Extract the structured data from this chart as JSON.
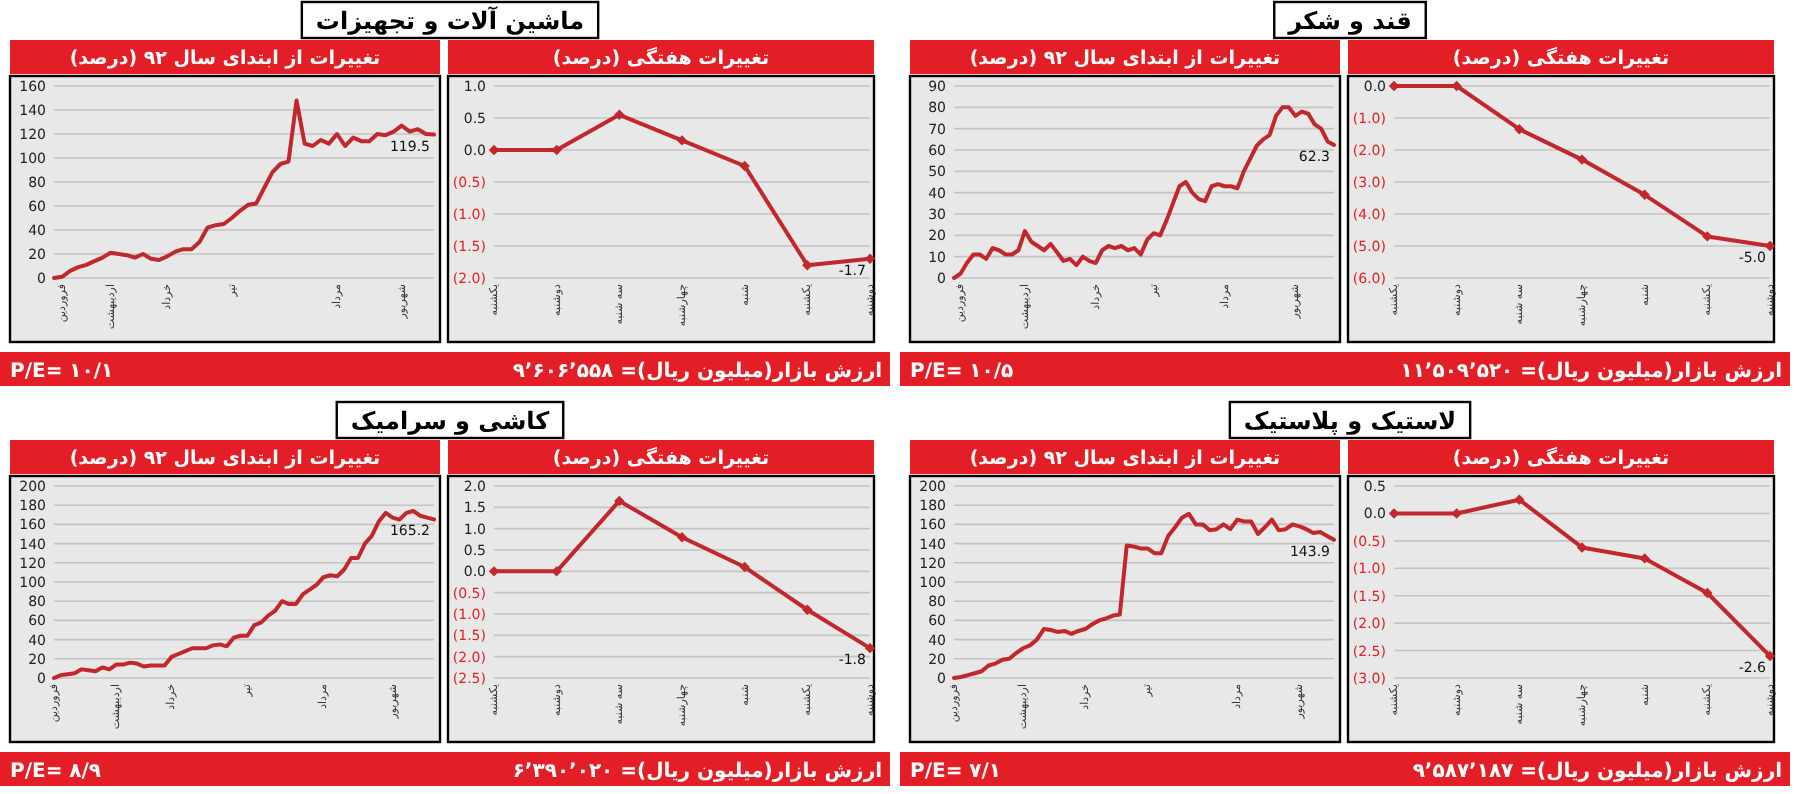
{
  "chart_data": [
    {
      "type": "line",
      "title": "ماشین آلات و تجهیزات",
      "subtitle": "تغییرات از ابتدای سال ۹۲ (درصد)",
      "color": "#c1272d",
      "grid": "y",
      "ylim": [
        0,
        160
      ],
      "categories": [
        null,
        "فروردین",
        null,
        null,
        null,
        null,
        null,
        "اردیبهشت",
        null,
        null,
        null,
        null,
        null,
        null,
        "خرداد",
        null,
        null,
        null,
        null,
        null,
        null,
        null,
        "تیر",
        null,
        null,
        null,
        null,
        null,
        null,
        null,
        null,
        null,
        null,
        null,
        null,
        "مرداد",
        null,
        null,
        null,
        null,
        null,
        null,
        null,
        "شهریور",
        null,
        null,
        null,
        null
      ],
      "yticks": [
        0,
        20,
        40,
        60,
        80,
        100,
        120,
        140,
        160
      ],
      "values": [
        0,
        1,
        6,
        9,
        11,
        14,
        17,
        21,
        20,
        19,
        17,
        20,
        16,
        15,
        18,
        22,
        24,
        24,
        30,
        42,
        44,
        45,
        50,
        56,
        61,
        62,
        75,
        88,
        95,
        97,
        148,
        112,
        110,
        115,
        112,
        120,
        110,
        117,
        114,
        114,
        120,
        119,
        122,
        127,
        122,
        124,
        120,
        119.5
      ],
      "value_labels": [
        null,
        null,
        null,
        null,
        null,
        null,
        null,
        null,
        null,
        null,
        null,
        null,
        null,
        null,
        null,
        null,
        null,
        null,
        null,
        null,
        null,
        null,
        null,
        null,
        null,
        null,
        null,
        null,
        null,
        null,
        null,
        null,
        null,
        null,
        null,
        null,
        null,
        null,
        null,
        null,
        null,
        null,
        null,
        null,
        null,
        null,
        null,
        "119.5"
      ],
      "annotations": [
        "P/E= ۱۰/۱",
        "ارزش بازار(میلیون ریال)= ۹٬۶۰۶٬۵۵۸"
      ]
    },
    {
      "type": "line",
      "title": "تغییرات هفتگی (درصد)",
      "color": "#c1272d",
      "grid": "y",
      "marker": "diamond",
      "ylim": [
        -2,
        1
      ],
      "categories": [
        "یکشنبه",
        "دوشنبه",
        "سه شنبه",
        "چهارشنبه",
        "شنبه",
        "یکشنبه",
        "دوشنبه"
      ],
      "yticks": [
        {
          "value": -2,
          "label": "(2.0)"
        },
        {
          "value": -1.5,
          "label": "(1.5)"
        },
        {
          "value": -1,
          "label": "(1.0)"
        },
        {
          "value": -0.5,
          "label": "(0.5)"
        },
        {
          "value": 0,
          "label": "0.0"
        },
        {
          "value": 0.5,
          "label": "0.5"
        },
        {
          "value": 1,
          "label": "1.0"
        }
      ],
      "values": [
        0,
        0,
        0.55,
        0.15,
        -0.25,
        -1.8,
        -1.7
      ],
      "value_labels": [
        null,
        null,
        null,
        null,
        null,
        null,
        "-1.7"
      ]
    },
    {
      "type": "line",
      "title": "قند و شکر",
      "subtitle": "تغییرات از ابتدای سال ۹۲ (درصد)",
      "color": "#c1272d",
      "grid": "y",
      "ylim": [
        0,
        90
      ],
      "categories": [
        null,
        "فروردین",
        null,
        null,
        null,
        null,
        null,
        null,
        null,
        null,
        null,
        "اردیبهشت",
        null,
        null,
        null,
        null,
        null,
        null,
        null,
        null,
        null,
        null,
        "خرداد",
        null,
        null,
        null,
        null,
        null,
        null,
        null,
        null,
        "تیر",
        null,
        null,
        null,
        null,
        null,
        null,
        null,
        null,
        null,
        null,
        "مرداد",
        null,
        null,
        null,
        null,
        null,
        null,
        null,
        null,
        null,
        null,
        "شهریور",
        null,
        null,
        null,
        null,
        null,
        null
      ],
      "yticks": [
        0,
        10,
        20,
        30,
        40,
        50,
        60,
        70,
        80,
        90
      ],
      "values": [
        0,
        2,
        7,
        11,
        11,
        9,
        14,
        13,
        11,
        11,
        13,
        22,
        17,
        15,
        13,
        16,
        12,
        8,
        9,
        6,
        10,
        8,
        7,
        13,
        15,
        14,
        15,
        13,
        14,
        11,
        18,
        21,
        20,
        27,
        35,
        43,
        45,
        40,
        37,
        36,
        43,
        44,
        43,
        43,
        42,
        50,
        56,
        62,
        65,
        67,
        76,
        80,
        80,
        76,
        78,
        77,
        72,
        70,
        64,
        62.3
      ],
      "value_labels": [
        null,
        null,
        null,
        null,
        null,
        null,
        null,
        null,
        null,
        null,
        null,
        null,
        null,
        null,
        null,
        null,
        null,
        null,
        null,
        null,
        null,
        null,
        null,
        null,
        null,
        null,
        null,
        null,
        null,
        null,
        null,
        null,
        null,
        null,
        null,
        null,
        null,
        null,
        null,
        null,
        null,
        null,
        null,
        null,
        null,
        null,
        null,
        null,
        null,
        null,
        null,
        null,
        null,
        null,
        null,
        null,
        null,
        null,
        null,
        "62.3"
      ],
      "annotations": [
        "P/E= ۱۰/۵",
        "ارزش بازار(میلیون ریال)= ۱۱٬۵۰۹٬۵۲۰"
      ]
    },
    {
      "type": "line",
      "title": "تغییرات هفتگی (درصد)",
      "color": "#c1272d",
      "grid": "y",
      "marker": "diamond",
      "ylim": [
        -6,
        0
      ],
      "categories": [
        "یکشنبه",
        "دوشنبه",
        "سه شنبه",
        "چهارشنبه",
        "شنبه",
        "یکشنبه",
        "دوشنبه"
      ],
      "yticks": [
        {
          "value": -6,
          "label": "(6.0)"
        },
        {
          "value": -5,
          "label": "(5.0)"
        },
        {
          "value": -4,
          "label": "(4.0)"
        },
        {
          "value": -3,
          "label": "(3.0)"
        },
        {
          "value": -2,
          "label": "(2.0)"
        },
        {
          "value": -1,
          "label": "(1.0)"
        },
        {
          "value": 0,
          "label": "0.0"
        }
      ],
      "values": [
        0,
        0,
        -1.35,
        -2.3,
        -3.4,
        -4.7,
        -5.0
      ],
      "value_labels": [
        null,
        null,
        null,
        null,
        null,
        null,
        "-5.0"
      ]
    },
    {
      "type": "line",
      "title": "کاشی و سرامیک",
      "subtitle": "تغییرات از ابتدای سال ۹۲ (درصد)",
      "color": "#c1272d",
      "grid": "y",
      "ylim": [
        0,
        200
      ],
      "categories": [
        "فروردین",
        null,
        null,
        null,
        null,
        null,
        null,
        null,
        null,
        "اردیبهشت",
        null,
        null,
        null,
        null,
        null,
        null,
        null,
        "خرداد",
        null,
        null,
        null,
        null,
        null,
        null,
        null,
        null,
        null,
        null,
        "تیر",
        null,
        null,
        null,
        null,
        null,
        null,
        null,
        null,
        null,
        null,
        "مرداد",
        null,
        null,
        null,
        null,
        null,
        null,
        null,
        null,
        null,
        "شهریور",
        null,
        null,
        null,
        null,
        null,
        null
      ],
      "yticks": [
        0,
        20,
        40,
        60,
        80,
        100,
        120,
        140,
        160,
        180,
        200
      ],
      "values": [
        0,
        3,
        4,
        5,
        9,
        8,
        7,
        11,
        9,
        14,
        14,
        16,
        15,
        12,
        13,
        13,
        13,
        22,
        25,
        28,
        31,
        31,
        31,
        34,
        35,
        33,
        42,
        44,
        44,
        55,
        58,
        65,
        70,
        80,
        77,
        77,
        87,
        92,
        97,
        105,
        107,
        106,
        113,
        125,
        125,
        140,
        148,
        163,
        172,
        167,
        165,
        172,
        174,
        169,
        167,
        165.2
      ],
      "value_labels": [
        null,
        null,
        null,
        null,
        null,
        null,
        null,
        null,
        null,
        null,
        null,
        null,
        null,
        null,
        null,
        null,
        null,
        null,
        null,
        null,
        null,
        null,
        null,
        null,
        null,
        null,
        null,
        null,
        null,
        null,
        null,
        null,
        null,
        null,
        null,
        null,
        null,
        null,
        null,
        null,
        null,
        null,
        null,
        null,
        null,
        null,
        null,
        null,
        null,
        null,
        null,
        null,
        null,
        null,
        null,
        "165.2"
      ],
      "annotations": [
        "P/E= ۸/۹",
        "ارزش بازار(میلیون ریال)= ۶٬۳۹۰٬۰۲۰"
      ]
    },
    {
      "type": "line",
      "title": "تغییرات هفتگی (درصد)",
      "color": "#c1272d",
      "grid": "y",
      "marker": "diamond",
      "ylim": [
        -2.5,
        2
      ],
      "categories": [
        "یکشنبه",
        "دوشنبه",
        "سه شنبه",
        "چهارشنبه",
        "شنبه",
        "یکشنبه",
        "دوشنبه"
      ],
      "yticks": [
        {
          "value": -2.5,
          "label": "(2.5)"
        },
        {
          "value": -2,
          "label": "(2.0)"
        },
        {
          "value": -1.5,
          "label": "(1.5)"
        },
        {
          "value": -1,
          "label": "(1.0)"
        },
        {
          "value": -0.5,
          "label": "(0.5)"
        },
        {
          "value": 0,
          "label": "0.0"
        },
        {
          "value": 0.5,
          "label": "0.5"
        },
        {
          "value": 1,
          "label": "1.0"
        },
        {
          "value": 1.5,
          "label": "1.5"
        },
        {
          "value": 2,
          "label": "2.0"
        }
      ],
      "values": [
        0,
        0,
        1.65,
        0.8,
        0.1,
        -0.9,
        -1.8
      ],
      "value_labels": [
        null,
        null,
        null,
        null,
        null,
        null,
        "-1.8"
      ]
    },
    {
      "type": "line",
      "title": "لاستیک و پلاستیک",
      "subtitle": "تغییرات از ابتدای سال ۹۲ (درصد)",
      "color": "#c1272d",
      "grid": "y",
      "ylim": [
        0,
        200
      ],
      "categories": [
        "فروردین",
        null,
        null,
        null,
        null,
        null,
        null,
        null,
        null,
        null,
        "اردیبهشت",
        null,
        null,
        null,
        null,
        null,
        null,
        null,
        null,
        "خرداد",
        null,
        null,
        null,
        null,
        null,
        null,
        null,
        null,
        "تیر",
        null,
        null,
        null,
        null,
        null,
        null,
        null,
        null,
        null,
        null,
        null,
        null,
        "مرداد",
        null,
        null,
        null,
        null,
        null,
        null,
        null,
        null,
        "شهریور",
        null,
        null,
        null,
        null,
        null
      ],
      "yticks": [
        0,
        20,
        40,
        60,
        80,
        100,
        120,
        140,
        160,
        180,
        200
      ],
      "values": [
        0,
        1,
        3,
        5,
        7,
        13,
        15,
        19,
        20,
        26,
        31,
        34,
        40,
        51,
        50,
        48,
        49,
        46,
        49,
        51,
        56,
        60,
        62,
        65,
        66,
        138,
        137,
        135,
        135,
        130,
        130,
        148,
        157,
        167,
        171,
        160,
        160,
        154,
        155,
        160,
        155,
        165,
        163,
        163,
        150,
        157,
        165,
        154,
        155,
        160,
        158,
        155,
        151,
        152,
        148,
        143.9
      ],
      "value_labels": [
        null,
        null,
        null,
        null,
        null,
        null,
        null,
        null,
        null,
        null,
        null,
        null,
        null,
        null,
        null,
        null,
        null,
        null,
        null,
        null,
        null,
        null,
        null,
        null,
        null,
        null,
        null,
        null,
        null,
        null,
        null,
        null,
        null,
        null,
        null,
        null,
        null,
        null,
        null,
        null,
        null,
        null,
        null,
        null,
        null,
        null,
        null,
        null,
        null,
        null,
        null,
        null,
        null,
        null,
        null,
        "143.9"
      ],
      "annotations": [
        "P/E= ۷/۱",
        "ارزش بازار(میلیون ریال)= ۹٬۵۸۷٬۱۸۷"
      ]
    },
    {
      "type": "line",
      "title": "تغییرات هفتگی (درصد)",
      "color": "#c1272d",
      "grid": "y",
      "marker": "diamond",
      "ylim": [
        -3,
        0.5
      ],
      "categories": [
        "یکشنبه",
        "دوشنبه",
        "سه شنبه",
        "چهارشنبه",
        "شنبه",
        "یکشنبه",
        "دوشنبه"
      ],
      "yticks": [
        {
          "value": -3,
          "label": "(3.0)"
        },
        {
          "value": -2.5,
          "label": "(2.5)"
        },
        {
          "value": -2,
          "label": "(2.0)"
        },
        {
          "value": -1.5,
          "label": "(1.5)"
        },
        {
          "value": -1,
          "label": "(1.0)"
        },
        {
          "value": -0.5,
          "label": "(0.5)"
        },
        {
          "value": 0,
          "label": "0.0"
        },
        {
          "value": 0.5,
          "label": "0.5"
        }
      ],
      "values": [
        0,
        0,
        0.25,
        -0.62,
        -0.82,
        -1.45,
        -2.6
      ],
      "value_labels": [
        null,
        null,
        null,
        null,
        null,
        null,
        "-2.6"
      ]
    }
  ]
}
